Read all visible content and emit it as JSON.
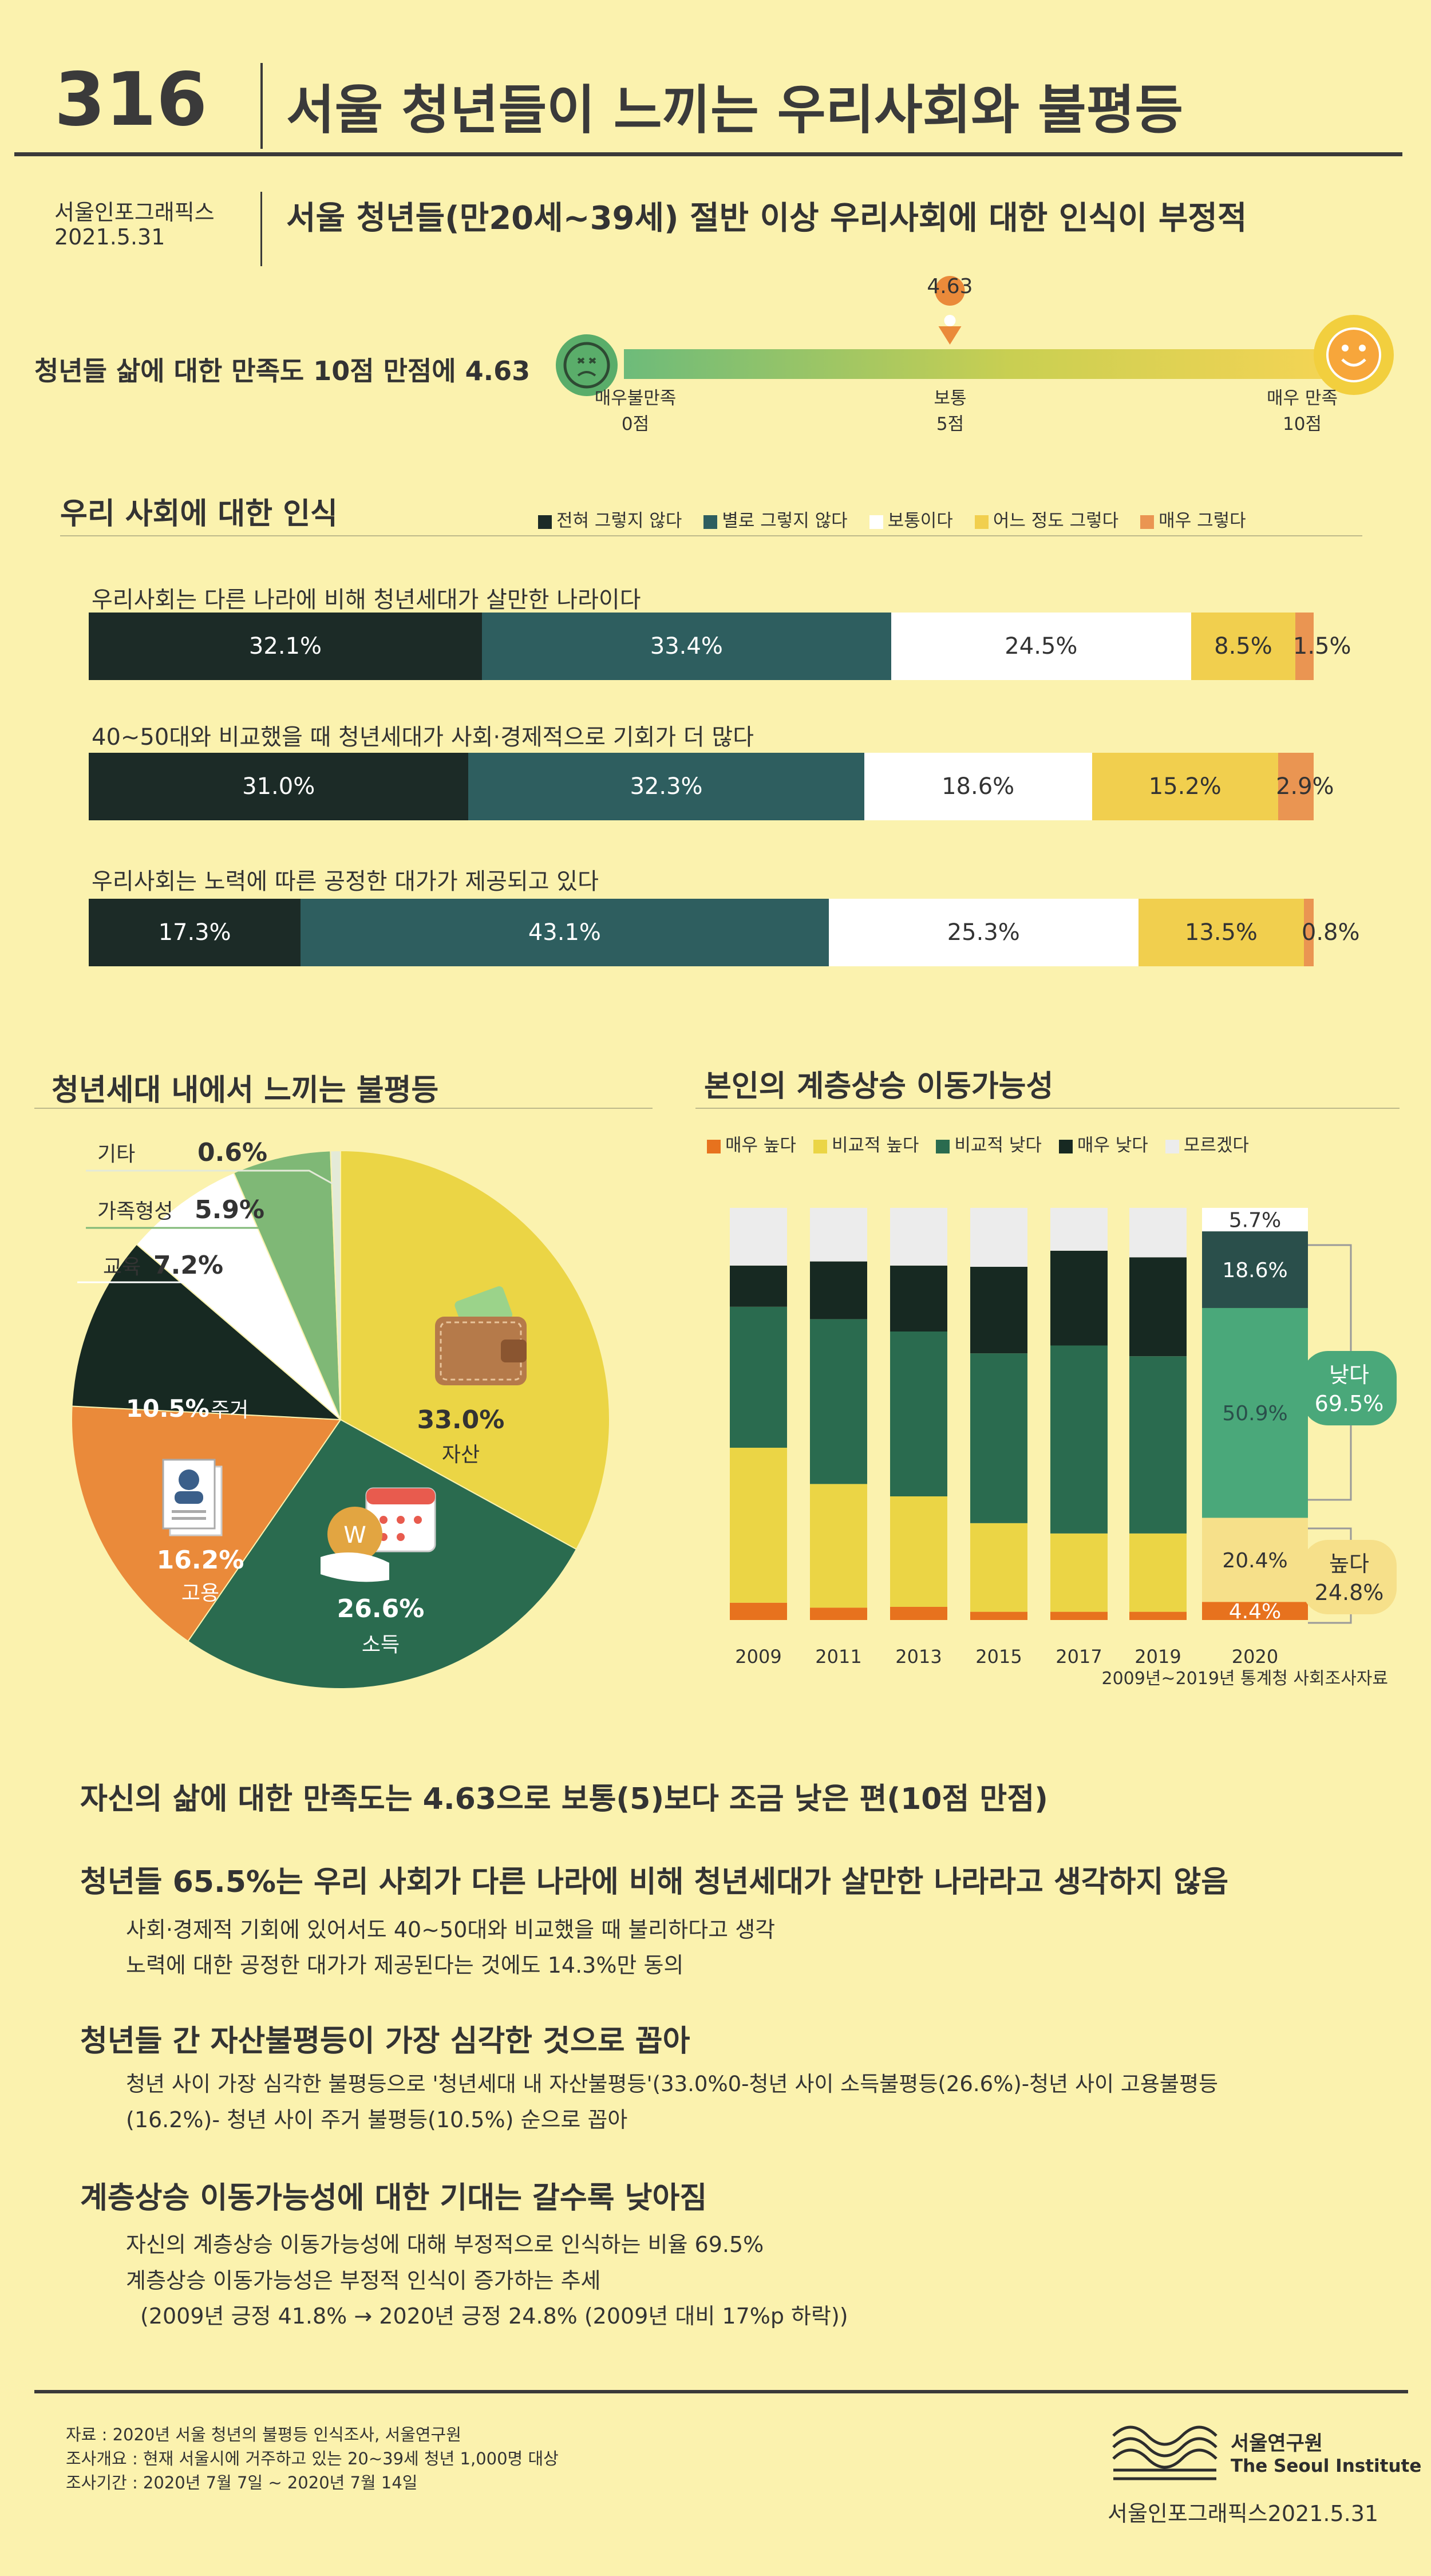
{
  "header": {
    "number": "316",
    "title": "서울 청년들이 느끼는 우리사회와 불평등",
    "publisher": "서울인포그래픽스",
    "date": "2021.5.31",
    "subtitle": "서울 청년들(만20세~39세) 절반 이상 우리사회에 대한 인식이 부정적"
  },
  "satisfaction": {
    "label": "청년들 삶에 대한 만족도 10점 만점에 4.63",
    "value": 4.63,
    "value_label": "4.63",
    "max": 10,
    "scale": [
      {
        "name": "매우불만족",
        "score": "0점"
      },
      {
        "name": "보통",
        "score": "5점"
      },
      {
        "name": "매우 만족",
        "score": "10점"
      }
    ]
  },
  "perception": {
    "title": "우리 사회에 대한 인식",
    "legend": [
      {
        "name": "전혀 그렇지 않다",
        "color": "#1c2b27"
      },
      {
        "name": "별로 그렇지 않다",
        "color": "#2e5e5f"
      },
      {
        "name": "보통이다",
        "color": "#ffffff"
      },
      {
        "name": "어느 정도 그렇다",
        "color": "#f1cf4e"
      },
      {
        "name": "매우 그렇다",
        "color": "#ea9552"
      }
    ],
    "items": [
      {
        "question": "우리사회는 다른 나라에 비해 청년세대가 살만한 나라이다",
        "values": [
          32.1,
          33.4,
          24.5,
          8.5,
          1.5
        ],
        "labels": [
          "32.1%",
          "33.4%",
          "24.5%",
          "8.5%",
          "1.5%"
        ]
      },
      {
        "question": "40~50대와 비교했을 때 청년세대가 사회·경제적으로 기회가 더 많다",
        "values": [
          31.0,
          32.3,
          18.6,
          15.2,
          2.9
        ],
        "labels": [
          "31.0%",
          "32.3%",
          "18.6%",
          "15.2%",
          "2.9%"
        ]
      },
      {
        "question": "우리사회는 노력에 따른 공정한 대가가 제공되고 있다",
        "values": [
          17.3,
          43.1,
          25.3,
          13.5,
          0.8
        ],
        "labels": [
          "17.3%",
          "43.1%",
          "25.3%",
          "13.5%",
          "0.8%"
        ]
      }
    ]
  },
  "chart_data": [
    {
      "type": "bar",
      "title": "우리 사회에 대한 인식",
      "orientation": "horizontal-stacked",
      "categories": [
        "우리사회는 다른 나라에 비해 청년세대가 살만한 나라이다",
        "40~50대와 비교했을 때 청년세대가 사회·경제적으로 기회가 더 많다",
        "우리사회는 노력에 따른 공정한 대가가 제공되고 있다"
      ],
      "series": [
        {
          "name": "전혀 그렇지 않다",
          "values": [
            32.1,
            31.0,
            17.3
          ]
        },
        {
          "name": "별로 그렇지 않다",
          "values": [
            33.4,
            32.3,
            43.1
          ]
        },
        {
          "name": "보통이다",
          "values": [
            24.5,
            18.6,
            25.3
          ]
        },
        {
          "name": "어느 정도 그렇다",
          "values": [
            8.5,
            15.2,
            13.5
          ]
        },
        {
          "name": "매우 그렇다",
          "values": [
            1.5,
            2.9,
            0.8
          ]
        }
      ]
    },
    {
      "type": "pie",
      "title": "청년세대 내에서 느끼는 불평등",
      "slices": [
        {
          "name": "자산",
          "value": 33.0,
          "label": "33.0%",
          "color": "#ebd545"
        },
        {
          "name": "소득",
          "value": 26.6,
          "label": "26.6%",
          "color": "#2a6b4f"
        },
        {
          "name": "고용",
          "value": 16.2,
          "label": "16.2%",
          "color": "#ea8a3a"
        },
        {
          "name": "주거",
          "value": 10.5,
          "label": "10.5%",
          "color": "#172922"
        },
        {
          "name": "교육",
          "value": 7.2,
          "label": "7.2%",
          "color": "#ffffff"
        },
        {
          "name": "가족형성",
          "value": 5.9,
          "label": "5.9%",
          "color": "#7fb876"
        },
        {
          "name": "기타",
          "value": 0.6,
          "label": "0.6%",
          "color": "#e4ead8"
        }
      ]
    },
    {
      "type": "bar",
      "title": "본인의 계층상승 이동가능성",
      "orientation": "vertical-stacked",
      "categories": [
        "2009",
        "2011",
        "2013",
        "2015",
        "2017",
        "2019",
        "2020"
      ],
      "series": [
        {
          "name": "매우 높다",
          "color": "#e7721e",
          "values": [
            4.2,
            3.0,
            3.2,
            2.0,
            2.0,
            2.0,
            4.4
          ]
        },
        {
          "name": "비교적 높다",
          "color": "#ebd545",
          "values": [
            37.6,
            30.0,
            26.8,
            21.5,
            19.0,
            19.0,
            20.4
          ]
        },
        {
          "name": "비교적 낮다",
          "color": "#2a6b4f",
          "values": [
            34.2,
            40.0,
            40.0,
            41.2,
            45.6,
            43.0,
            50.9
          ]
        },
        {
          "name": "매우 낮다",
          "color": "#172922",
          "values": [
            10.0,
            14.0,
            16.0,
            21.0,
            23.0,
            24.0,
            18.6
          ]
        },
        {
          "name": "모르겠다",
          "color": "#ececec",
          "values": [
            14.0,
            13.0,
            14.0,
            14.3,
            10.4,
            12.0,
            5.7
          ]
        }
      ],
      "labels_2020": [
        "4.4%",
        "20.4%",
        "50.9%",
        "18.6%",
        "5.7%"
      ],
      "groups_2020": [
        {
          "name": "낮다",
          "value": "69.5%"
        },
        {
          "name": "높다",
          "value": "24.8%"
        }
      ],
      "note": "2009년~2019년 통계청 사회조사자료"
    }
  ],
  "pie": {
    "title": "청년세대 내에서 느끼는 불평등"
  },
  "mobility": {
    "title": "본인의 계층상승 이동가능성",
    "legend": [
      "매우 높다",
      "비교적 높다",
      "비교적 낮다",
      "매우 낮다",
      "모르겠다"
    ]
  },
  "summary": [
    {
      "heading": "자신의 삶에 대한 만족도는 4.63으로 보통(5)보다 조금 낮은 편(10점 만점)",
      "lines": []
    },
    {
      "heading": "청년들 65.5%는 우리 사회가 다른 나라에 비해 청년세대가 살만한 나라라고 생각하지 않음",
      "lines": [
        "사회·경제적 기회에 있어서도 40~50대와 비교했을 때 불리하다고 생각",
        "노력에 대한 공정한 대가가 제공된다는 것에도 14.3%만 동의"
      ]
    },
    {
      "heading": "청년들 간 자산불평등이 가장 심각한 것으로 꼽아",
      "lines": [
        "청년 사이 가장 심각한 불평등으로 '청년세대 내 자산불평등'(33.0%0-청년 사이 소득불평등(26.6%)-청년 사이 고용불평등",
        "(16.2%)- 청년 사이 주거 불평등(10.5%) 순으로 꼽아"
      ]
    },
    {
      "heading": "계층상승 이동가능성에 대한 기대는 갈수록 낮아짐",
      "lines": [
        "자신의 계층상승 이동가능성에 대해 부정적으로 인식하는 비율 69.5%",
        "계층상승 이동가능성은 부정적 인식이 증가하는 추세",
        "(2009년 긍정 41.8% → 2020년 긍정 24.8% (2009년 대비 17%p 하락))"
      ]
    }
  ],
  "footer": {
    "source": "자료 : 2020년 서울 청년의 불평등 인식조사, 서울연구원",
    "overview": "조사개요 : 현재 서울시에 거주하고 있는 20~39세 청년 1,000명 대상",
    "period": "조사기간 : 2020년 7월 7일 ~ 2020년 7월 14일",
    "org_kr": "서울연구원",
    "org_en": "The Seoul Institute",
    "credit": "서울인포그래픽스2021.5.31"
  }
}
